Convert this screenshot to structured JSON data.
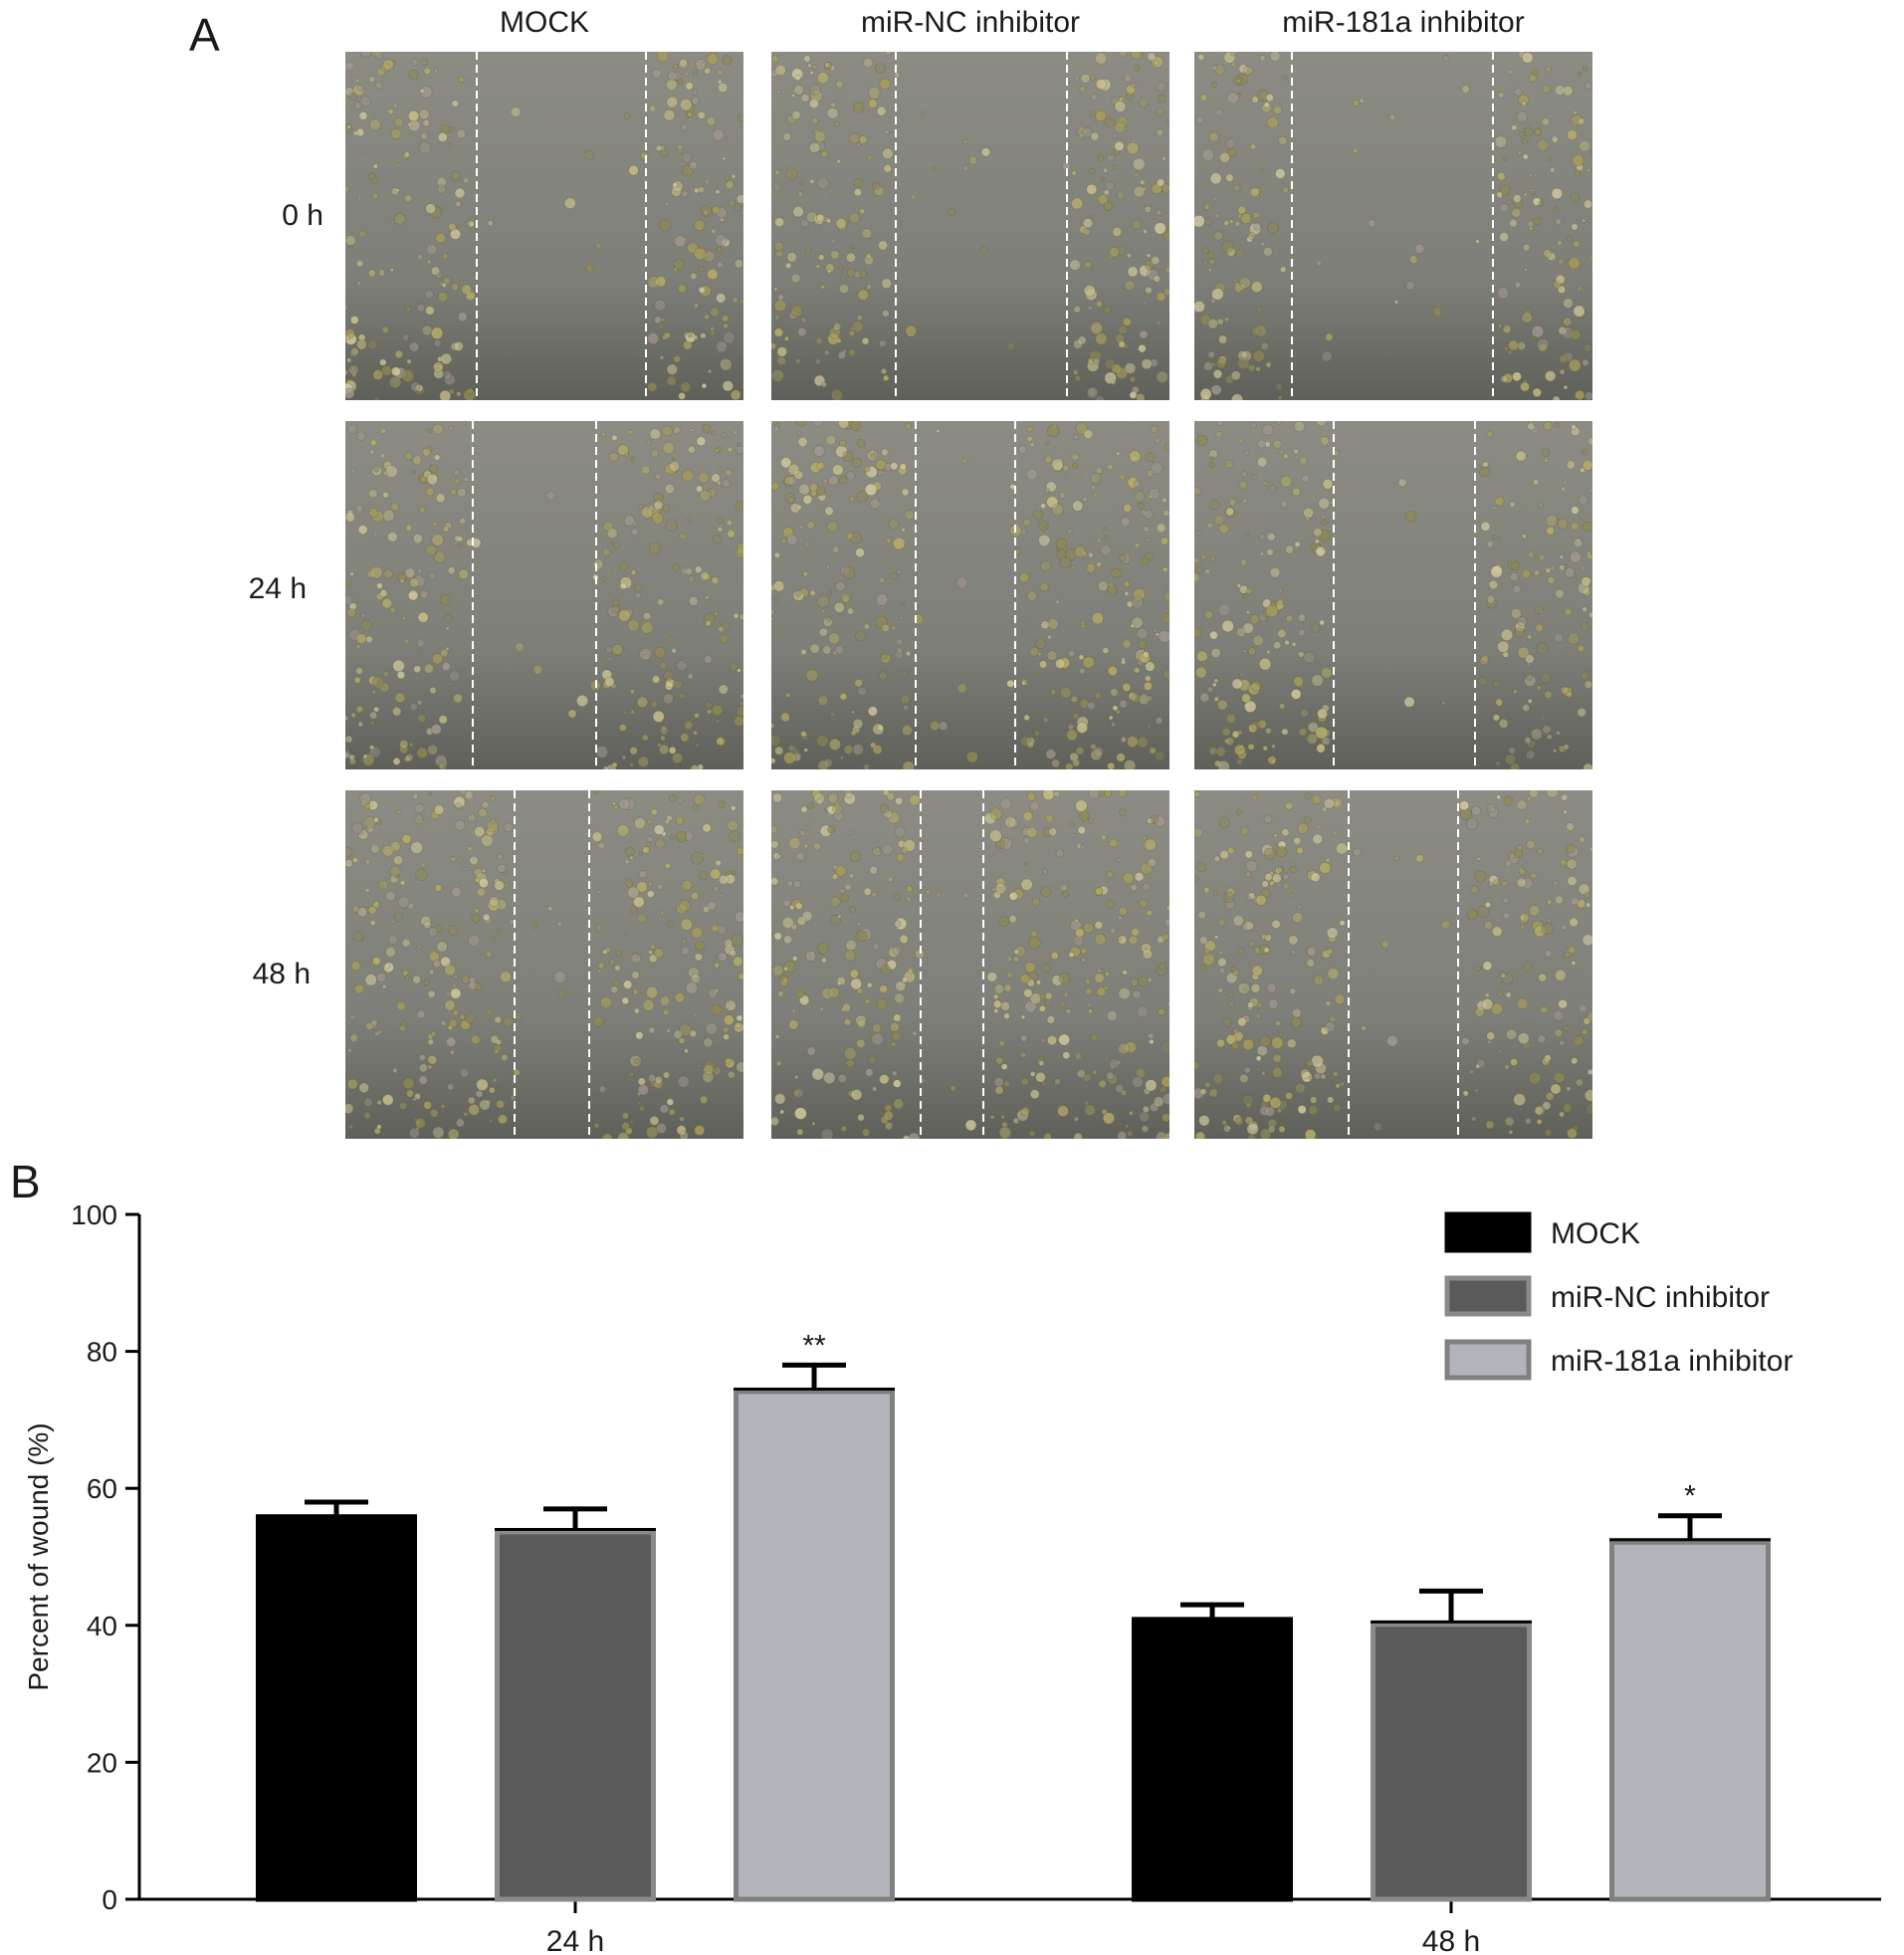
{
  "panel_a": {
    "letter": "A",
    "columns": [
      "MOCK",
      "miR-NC inhibitor",
      "miR-181a inhibitor"
    ],
    "rows": [
      "0 h",
      "24 h",
      "48 h"
    ]
  },
  "panel_b": {
    "letter": "B"
  },
  "chart_data": {
    "type": "bar",
    "title": "",
    "xlabel": "",
    "ylabel": "Percent of wound (%)",
    "ylim": [
      0,
      100
    ],
    "yticks": [
      0,
      20,
      40,
      60,
      80,
      100
    ],
    "categories": [
      "24 h",
      "48 h"
    ],
    "series": [
      {
        "name": "MOCK",
        "values": [
          56,
          41
        ],
        "errors": [
          2,
          2
        ],
        "fill": "#000000",
        "stroke": "#000000",
        "sig": [
          "",
          ""
        ]
      },
      {
        "name": "miR-NC inhibitor",
        "values": [
          54,
          40.5
        ],
        "errors": [
          3,
          4.5
        ],
        "fill": "#5a5a5a",
        "stroke": "#8a8a8a",
        "sig": [
          "",
          ""
        ]
      },
      {
        "name": "miR-181a inhibitor",
        "values": [
          74.5,
          52.5
        ],
        "errors": [
          3.5,
          3.5
        ],
        "fill": "#b2b4bc",
        "stroke": "#808080",
        "sig": [
          "**",
          "*"
        ]
      }
    ],
    "legend_position": "top-right",
    "grid": false
  }
}
